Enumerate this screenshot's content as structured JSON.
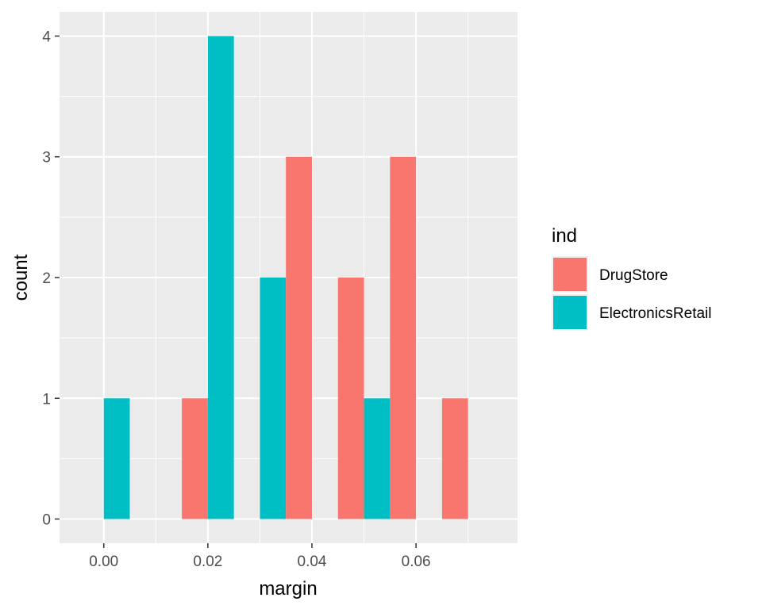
{
  "chart_data": {
    "type": "bar",
    "xlabel": "margin",
    "ylabel": "count",
    "xlim": [
      -0.0085,
      0.0795
    ],
    "ylim": [
      -0.2,
      4.2
    ],
    "x_ticks": [
      0.0,
      0.02,
      0.04,
      0.06
    ],
    "x_tick_labels": [
      "0.00",
      "0.02",
      "0.04",
      "0.06"
    ],
    "y_ticks": [
      0,
      1,
      2,
      3,
      4
    ],
    "y_tick_labels": [
      "0",
      "1",
      "2",
      "3",
      "4"
    ],
    "bin_width": 0.01,
    "bin_centers": [
      0.0,
      0.01,
      0.02,
      0.03,
      0.04,
      0.05,
      0.06,
      0.07
    ],
    "series": [
      {
        "name": "DrugStore",
        "color": "#F8766D",
        "values": [
          0,
          0,
          1,
          0,
          3,
          2,
          3,
          1
        ]
      },
      {
        "name": "ElectronicsRetail",
        "color": "#00BFC4",
        "values": [
          1,
          0,
          4,
          2,
          0,
          1,
          0,
          0
        ]
      }
    ],
    "legend": {
      "title": "ind",
      "position": "right",
      "entries": [
        "DrugStore",
        "ElectronicsRetail"
      ]
    },
    "grid": true,
    "panel_background": "#EBEBEB",
    "grid_color": "#FFFFFF"
  }
}
